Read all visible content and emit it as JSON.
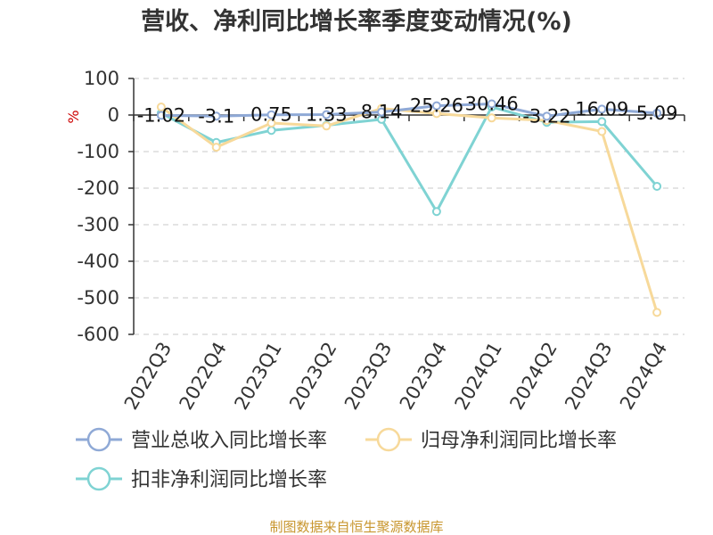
{
  "chart_data": {
    "type": "line",
    "title": "营收、净利同比增长率季度变动情况(%)",
    "ylabel": "%",
    "ylim": [
      -600,
      100
    ],
    "yticks": [
      100,
      0,
      -100,
      -200,
      -300,
      -400,
      -500,
      -600
    ],
    "categories": [
      "2022Q3",
      "2022Q4",
      "2023Q1",
      "2023Q2",
      "2023Q3",
      "2023Q4",
      "2024Q1",
      "2024Q2",
      "2024Q3",
      "2024Q4"
    ],
    "series": [
      {
        "name": "营业总收入同比增长率",
        "color": "#8fa9d6",
        "values": [
          -1.02,
          -3.1,
          0.75,
          1.33,
          8.14,
          25.26,
          30.46,
          -3.22,
          16.09,
          5.09
        ]
      },
      {
        "name": "归母净利润同比增长率",
        "color": "#f7d99a",
        "values": [
          22,
          -88,
          -22,
          -30,
          18,
          4,
          -8,
          -15,
          -45,
          -540
        ]
      },
      {
        "name": "扣非净利润同比增长率",
        "color": "#7fd3d3",
        "values": [
          5,
          -75,
          -42,
          -28,
          -12,
          -264,
          22,
          -20,
          -18,
          -195
        ]
      }
    ],
    "data_labels": [
      "-1.02",
      "-3.1",
      "0.75",
      "1.33",
      "8.14",
      "25.26",
      "30.46",
      "-3.22",
      "16.09",
      "5.09"
    ],
    "grid": true,
    "legend_position": "bottom"
  },
  "footer": {
    "source": "制图数据来自恒生聚源数据库"
  }
}
